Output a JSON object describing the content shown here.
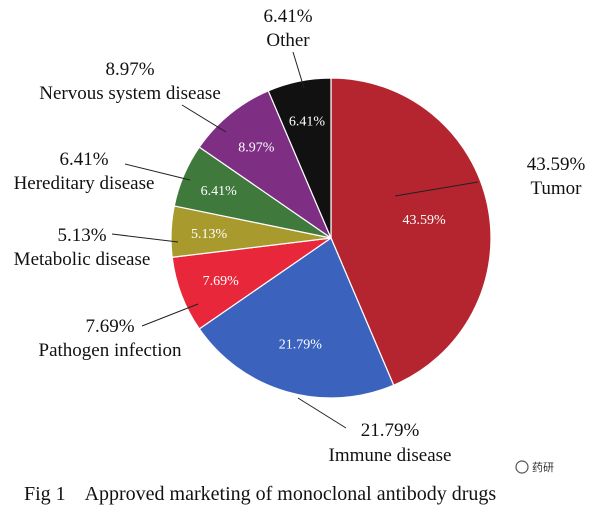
{
  "chart_data": {
    "type": "pie",
    "categories": [
      "Tumor",
      "Immune disease",
      "Pathogen infection",
      "Metabolic disease",
      "Hereditary disease",
      "Nervous system disease",
      "Other"
    ],
    "values": [
      43.59,
      21.79,
      7.69,
      5.13,
      6.41,
      8.97,
      6.41
    ],
    "value_labels": [
      "43.59%",
      "21.79%",
      "7.69%",
      "5.13%",
      "6.41%",
      "8.97%",
      "6.41%"
    ],
    "colors": [
      "#b5252f",
      "#3b63be",
      "#e8283a",
      "#a89a2c",
      "#3f7a3c",
      "#7e2f84",
      "#111111"
    ],
    "inner_label_colors": [
      "#ffffff",
      "#ffffff",
      "#ffffff",
      "#ffffff",
      "#ffffff",
      "#ffffff",
      "#ffffff"
    ],
    "start_angle_deg": 0,
    "direction": "clockwise",
    "caption": "Fig 1    Approved marketing of monoclonal antibody drugs",
    "watermark": "药研"
  }
}
